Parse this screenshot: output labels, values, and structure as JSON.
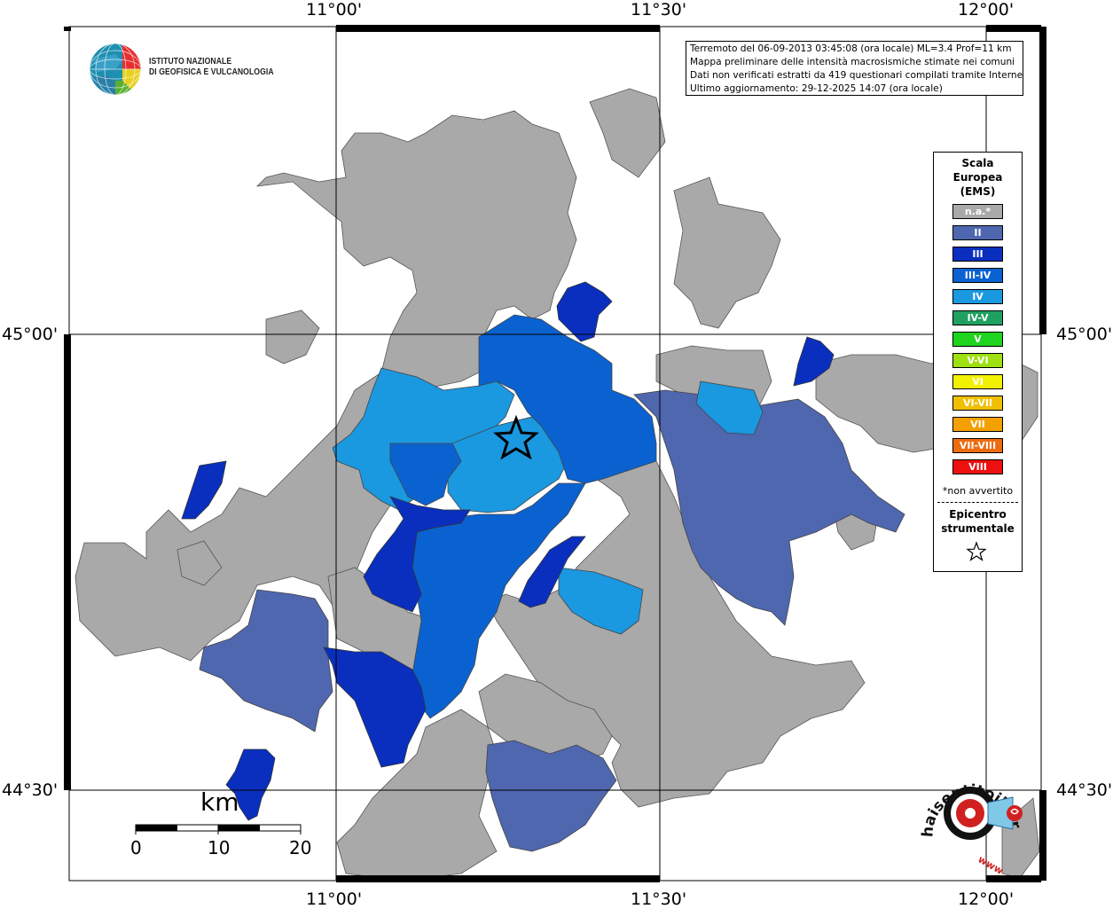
{
  "coords": {
    "top": [
      "11°00'",
      "11°30'",
      "12°00'"
    ],
    "bottom": [
      "11°00'",
      "11°30'",
      "12°00'"
    ],
    "left": [
      "45°00'",
      "44°30'"
    ],
    "right": [
      "45°00'",
      "44°30'"
    ]
  },
  "logo": {
    "line1": "ISTITUTO NAZIONALE",
    "line2": "DI GEOFISICA E VULCANOLOGIA"
  },
  "info": {
    "line1": "Terremoto del 06-09-2013 03:45:08 (ora locale) ML=3.4 Prof=11 km",
    "line2": "Mappa preliminare delle intensità macrosismiche stimate nei comuni",
    "line3": "Dati non verificati estratti da 419 questionari compilati tramite Internet.",
    "line4": "Ultimo aggiornamento: 29-12-2025 14:07 (ora locale)"
  },
  "legend": {
    "title_line1": "Scala",
    "title_line2": "Europea",
    "title_line3": "(EMS)",
    "items": [
      {
        "label": "n.a.*",
        "color": "#a9a9a9"
      },
      {
        "label": "II",
        "color": "#4f67ae"
      },
      {
        "label": "III",
        "color": "#0a2fbf"
      },
      {
        "label": "III-IV",
        "color": "#0a62d0"
      },
      {
        "label": "IV",
        "color": "#1a98e0"
      },
      {
        "label": "IV-V",
        "color": "#1fa060"
      },
      {
        "label": "V",
        "color": "#1ed41e"
      },
      {
        "label": "V-VI",
        "color": "#9ee010"
      },
      {
        "label": "VI",
        "color": "#f2f200"
      },
      {
        "label": "VI-VII",
        "color": "#f0c000"
      },
      {
        "label": "VII",
        "color": "#f4a000"
      },
      {
        "label": "VII-VIII",
        "color": "#ee6c10"
      },
      {
        "label": "VIII",
        "color": "#ee1010"
      }
    ],
    "note": "*non avvertito",
    "epicentro_line1": "Epicentro",
    "epicentro_line2": "strumentale"
  },
  "scalebar": {
    "unit": "km",
    "ticks": [
      "0",
      "10",
      "20"
    ]
  },
  "badge": {
    "text": "haisentitoilterremoto.it",
    "prefix": "www."
  },
  "colors": {
    "na": "#a9a9a9",
    "ii": "#4f67ae",
    "iii": "#0a2fbf",
    "iii_iv": "#0a62d0",
    "iv": "#1a98e0",
    "border": "#444444"
  }
}
